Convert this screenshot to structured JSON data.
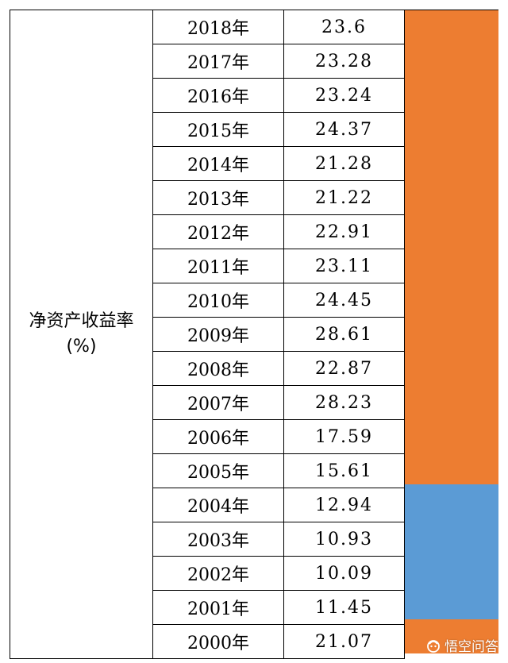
{
  "table": {
    "label": "净资产收益率(%)",
    "rows": [
      {
        "year": "2018年",
        "value": "23.6"
      },
      {
        "year": "2017年",
        "value": "23.28"
      },
      {
        "year": "2016年",
        "value": "23.24"
      },
      {
        "year": "2015年",
        "value": "24.37"
      },
      {
        "year": "2014年",
        "value": "21.28"
      },
      {
        "year": "2013年",
        "value": "21.22"
      },
      {
        "year": "2012年",
        "value": "22.91"
      },
      {
        "year": "2011年",
        "value": "23.11"
      },
      {
        "year": "2010年",
        "value": "24.45"
      },
      {
        "year": "2009年",
        "value": "28.61"
      },
      {
        "year": "2008年",
        "value": "22.87"
      },
      {
        "year": "2007年",
        "value": "28.23"
      },
      {
        "year": "2006年",
        "value": "17.59"
      },
      {
        "year": "2005年",
        "value": "15.61"
      },
      {
        "year": "2004年",
        "value": "12.94"
      },
      {
        "year": "2003年",
        "value": "10.93"
      },
      {
        "year": "2002年",
        "value": "10.09"
      },
      {
        "year": "2001年",
        "value": "11.45"
      },
      {
        "year": "2000年",
        "value": "21.07"
      }
    ]
  },
  "highlight_bands": [
    {
      "color": "#ED7D31",
      "first_row": 0,
      "last_row": 13
    },
    {
      "color": "#5B9BD5",
      "first_row": 14,
      "last_row": 17
    },
    {
      "color": "#ED7D31",
      "first_row": 18,
      "last_row": 18
    }
  ],
  "watermark": {
    "text": "悟空问答",
    "icon": "wukong-logo-icon"
  }
}
